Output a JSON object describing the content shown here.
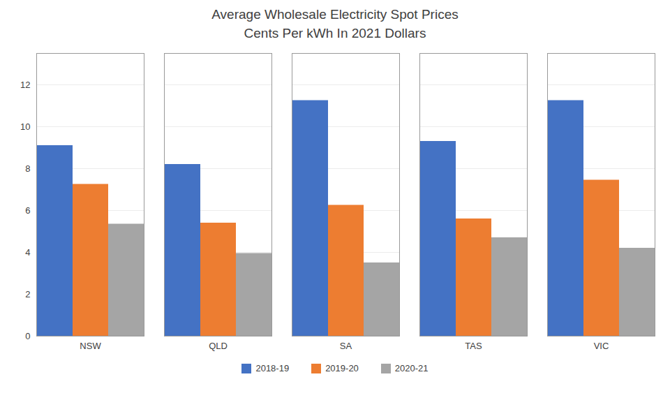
{
  "chart_data": {
    "type": "bar",
    "title": "Average Wholesale Electricity Spot Prices\nCents Per kWh In 2021 Dollars",
    "categories": [
      "NSW",
      "QLD",
      "SA",
      "TAS",
      "VIC"
    ],
    "series": [
      {
        "name": "2018-19",
        "color": "#4472C4",
        "values": [
          9.1,
          8.2,
          11.25,
          9.3,
          11.25
        ]
      },
      {
        "name": "2019-20",
        "color": "#ED7D31",
        "values": [
          7.25,
          5.4,
          6.25,
          5.6,
          7.45
        ]
      },
      {
        "name": "2020-21",
        "color": "#A5A5A5",
        "values": [
          5.35,
          3.95,
          3.5,
          4.7,
          4.2
        ]
      }
    ],
    "ylim": [
      0,
      13.5
    ],
    "yticks": [
      0,
      2,
      4,
      6,
      8,
      10,
      12
    ],
    "grid": true,
    "legend": "bottom"
  }
}
